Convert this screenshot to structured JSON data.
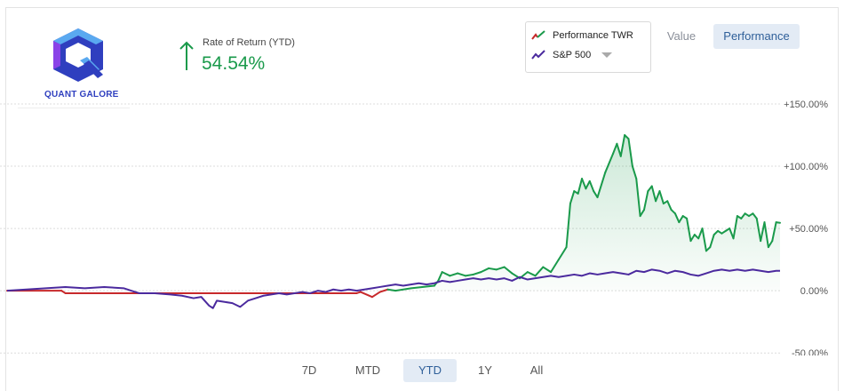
{
  "brand": {
    "logo_text": "QUANT GALORE",
    "colors": {
      "hex_dark": "#2f3fbf",
      "hex_light": "#5aa9f0",
      "hex_purple": "#8a43e8"
    },
    "icon": "hexagon-q-logo"
  },
  "summary": {
    "label": "Rate of Return (YTD)",
    "value": "54.54%",
    "direction_icon": "arrow-up-icon",
    "color": "#1a9a4b"
  },
  "legend": {
    "items": [
      {
        "label": "Performance TWR",
        "icon": "line-swatch-icon",
        "colors": [
          "#c7292b",
          "#1a9a4b"
        ]
      },
      {
        "label": "S&P 500",
        "icon": "line-swatch-icon",
        "colors": [
          "#4b2a9e"
        ]
      }
    ],
    "dropdown_icon": "chevron-down-icon"
  },
  "view_toggle": {
    "options": [
      "Value",
      "Performance"
    ],
    "selected": "Performance"
  },
  "range_selector": {
    "options": [
      "7D",
      "MTD",
      "YTD",
      "1Y",
      "All"
    ],
    "selected": "YTD"
  },
  "chart_data": {
    "type": "line",
    "y_tick_labels": [
      "-50.00%",
      "0.00%",
      "+50.00%",
      "+100.00%",
      "+150.00%"
    ],
    "y_ticks": [
      -50,
      0,
      50,
      100,
      150
    ],
    "ylim": [
      -52,
      155
    ],
    "grid": true,
    "x_count": 200,
    "series": [
      {
        "name": "Performance TWR",
        "colors": {
          "below_zero": "#c7292b",
          "above_zero": "#1a9a4b"
        },
        "fill": "#1a9a4b",
        "points": [
          [
            0,
            0
          ],
          [
            14,
            0
          ],
          [
            15,
            -2
          ],
          [
            90,
            -2
          ],
          [
            91,
            -1
          ],
          [
            94,
            -5
          ],
          [
            96,
            -1
          ],
          [
            98,
            1
          ],
          [
            100,
            0
          ],
          [
            104,
            2
          ],
          [
            110,
            4
          ],
          [
            111,
            8
          ],
          [
            112,
            15
          ],
          [
            114,
            12
          ],
          [
            116,
            14
          ],
          [
            118,
            12
          ],
          [
            120,
            13
          ],
          [
            122,
            15
          ],
          [
            124,
            18
          ],
          [
            126,
            17
          ],
          [
            128,
            19
          ],
          [
            130,
            14
          ],
          [
            132,
            10
          ],
          [
            134,
            15
          ],
          [
            136,
            12
          ],
          [
            138,
            19
          ],
          [
            140,
            15
          ],
          [
            142,
            25
          ],
          [
            144,
            35
          ],
          [
            145,
            70
          ],
          [
            146,
            80
          ],
          [
            147,
            78
          ],
          [
            148,
            90
          ],
          [
            149,
            82
          ],
          [
            150,
            88
          ],
          [
            151,
            80
          ],
          [
            152,
            75
          ],
          [
            154,
            95
          ],
          [
            156,
            110
          ],
          [
            157,
            118
          ],
          [
            158,
            108
          ],
          [
            159,
            125
          ],
          [
            160,
            122
          ],
          [
            161,
            100
          ],
          [
            162,
            90
          ],
          [
            163,
            60
          ],
          [
            164,
            65
          ],
          [
            165,
            80
          ],
          [
            166,
            84
          ],
          [
            167,
            72
          ],
          [
            168,
            80
          ],
          [
            169,
            70
          ],
          [
            170,
            72
          ],
          [
            171,
            65
          ],
          [
            172,
            62
          ],
          [
            173,
            55
          ],
          [
            174,
            60
          ],
          [
            175,
            58
          ],
          [
            176,
            40
          ],
          [
            177,
            45
          ],
          [
            178,
            42
          ],
          [
            179,
            50
          ],
          [
            180,
            32
          ],
          [
            181,
            35
          ],
          [
            182,
            45
          ],
          [
            183,
            48
          ],
          [
            184,
            46
          ],
          [
            185,
            48
          ],
          [
            186,
            50
          ],
          [
            187,
            42
          ],
          [
            188,
            60
          ],
          [
            189,
            58
          ],
          [
            190,
            62
          ],
          [
            191,
            60
          ],
          [
            192,
            62
          ],
          [
            193,
            58
          ],
          [
            194,
            40
          ],
          [
            195,
            55
          ],
          [
            196,
            35
          ],
          [
            197,
            40
          ],
          [
            198,
            55
          ],
          [
            199,
            54.54
          ]
        ]
      },
      {
        "name": "S&P 500",
        "color": "#4b2a9e",
        "points": [
          [
            0,
            0
          ],
          [
            5,
            1
          ],
          [
            10,
            2
          ],
          [
            15,
            3
          ],
          [
            20,
            2
          ],
          [
            25,
            3
          ],
          [
            30,
            2
          ],
          [
            32,
            0
          ],
          [
            34,
            -2
          ],
          [
            38,
            -2
          ],
          [
            42,
            -3
          ],
          [
            45,
            -4
          ],
          [
            48,
            -6
          ],
          [
            50,
            -5
          ],
          [
            52,
            -12
          ],
          [
            53,
            -14
          ],
          [
            54,
            -8
          ],
          [
            56,
            -9
          ],
          [
            58,
            -10
          ],
          [
            60,
            -13
          ],
          [
            62,
            -8
          ],
          [
            64,
            -6
          ],
          [
            66,
            -4
          ],
          [
            68,
            -3
          ],
          [
            70,
            -2
          ],
          [
            72,
            -3
          ],
          [
            74,
            -2
          ],
          [
            76,
            -1
          ],
          [
            78,
            -2
          ],
          [
            80,
            0
          ],
          [
            82,
            -1
          ],
          [
            84,
            1
          ],
          [
            86,
            0
          ],
          [
            88,
            1
          ],
          [
            90,
            0
          ],
          [
            92,
            1
          ],
          [
            94,
            2
          ],
          [
            96,
            3
          ],
          [
            98,
            4
          ],
          [
            100,
            5
          ],
          [
            102,
            4
          ],
          [
            104,
            5
          ],
          [
            106,
            6
          ],
          [
            108,
            5
          ],
          [
            110,
            6
          ],
          [
            112,
            8
          ],
          [
            114,
            7
          ],
          [
            116,
            8
          ],
          [
            118,
            9
          ],
          [
            120,
            10
          ],
          [
            122,
            9
          ],
          [
            124,
            10
          ],
          [
            126,
            9
          ],
          [
            128,
            10
          ],
          [
            130,
            8
          ],
          [
            132,
            11
          ],
          [
            134,
            9
          ],
          [
            136,
            10
          ],
          [
            138,
            11
          ],
          [
            140,
            12
          ],
          [
            142,
            11
          ],
          [
            144,
            12
          ],
          [
            146,
            13
          ],
          [
            148,
            12
          ],
          [
            150,
            14
          ],
          [
            152,
            13
          ],
          [
            154,
            14
          ],
          [
            156,
            15
          ],
          [
            158,
            14
          ],
          [
            160,
            13
          ],
          [
            162,
            16
          ],
          [
            164,
            15
          ],
          [
            166,
            17
          ],
          [
            168,
            16
          ],
          [
            170,
            14
          ],
          [
            172,
            16
          ],
          [
            174,
            15
          ],
          [
            176,
            13
          ],
          [
            178,
            12
          ],
          [
            180,
            14
          ],
          [
            182,
            16
          ],
          [
            184,
            17
          ],
          [
            186,
            16
          ],
          [
            188,
            17
          ],
          [
            190,
            16
          ],
          [
            192,
            17
          ],
          [
            194,
            16
          ],
          [
            196,
            15
          ],
          [
            198,
            16
          ],
          [
            199,
            16
          ]
        ]
      }
    ]
  }
}
